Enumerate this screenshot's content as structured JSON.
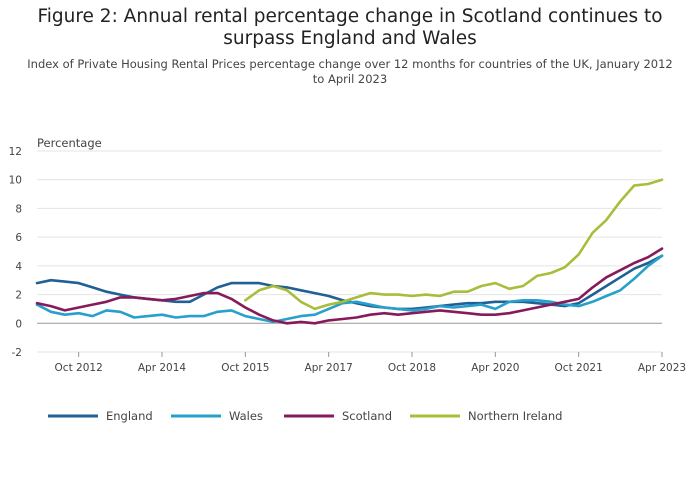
{
  "chart_data": {
    "type": "line",
    "title": "Figure 2: Annual rental percentage change in Scotland continues to surpass England and Wales",
    "subtitle": "Index of Private Housing Rental Prices percentage change over 12 months for countries of the UK, January 2012 to April 2023",
    "ylabel": "Percentage",
    "xlabel": "",
    "ylim": [
      -2,
      12
    ],
    "yticks": [
      -2,
      0,
      2,
      4,
      6,
      8,
      10,
      12
    ],
    "xlim": [
      "2012-01",
      "2023-04"
    ],
    "xticks": [
      {
        "date": "2012-10",
        "label": "Oct 2012"
      },
      {
        "date": "2014-04",
        "label": "Apr 2014"
      },
      {
        "date": "2015-10",
        "label": "Oct 2015"
      },
      {
        "date": "2017-04",
        "label": "Apr 2017"
      },
      {
        "date": "2018-10",
        "label": "Oct 2018"
      },
      {
        "date": "2020-04",
        "label": "Apr 2020"
      },
      {
        "date": "2021-10",
        "label": "Oct 2021"
      },
      {
        "date": "2023-04",
        "label": "Apr 2023"
      }
    ],
    "grid": true,
    "legend": "bottom",
    "series": [
      {
        "name": "England",
        "color": "#206095",
        "points": [
          [
            "2012-01",
            2.8
          ],
          [
            "2012-04",
            3.0
          ],
          [
            "2012-07",
            2.9
          ],
          [
            "2012-10",
            2.8
          ],
          [
            "2013-01",
            2.5
          ],
          [
            "2013-04",
            2.2
          ],
          [
            "2013-07",
            2.0
          ],
          [
            "2013-10",
            1.8
          ],
          [
            "2014-01",
            1.7
          ],
          [
            "2014-04",
            1.6
          ],
          [
            "2014-07",
            1.5
          ],
          [
            "2014-10",
            1.5
          ],
          [
            "2015-01",
            2.0
          ],
          [
            "2015-04",
            2.5
          ],
          [
            "2015-07",
            2.8
          ],
          [
            "2015-10",
            2.8
          ],
          [
            "2016-01",
            2.8
          ],
          [
            "2016-04",
            2.6
          ],
          [
            "2016-07",
            2.5
          ],
          [
            "2016-10",
            2.3
          ],
          [
            "2017-01",
            2.1
          ],
          [
            "2017-04",
            1.9
          ],
          [
            "2017-07",
            1.6
          ],
          [
            "2017-10",
            1.4
          ],
          [
            "2018-01",
            1.2
          ],
          [
            "2018-04",
            1.1
          ],
          [
            "2018-07",
            1.0
          ],
          [
            "2018-10",
            1.0
          ],
          [
            "2019-01",
            1.1
          ],
          [
            "2019-04",
            1.2
          ],
          [
            "2019-07",
            1.3
          ],
          [
            "2019-10",
            1.4
          ],
          [
            "2020-01",
            1.4
          ],
          [
            "2020-04",
            1.5
          ],
          [
            "2020-07",
            1.5
          ],
          [
            "2020-10",
            1.5
          ],
          [
            "2021-01",
            1.4
          ],
          [
            "2021-04",
            1.3
          ],
          [
            "2021-07",
            1.2
          ],
          [
            "2021-10",
            1.4
          ],
          [
            "2022-01",
            2.0
          ],
          [
            "2022-04",
            2.6
          ],
          [
            "2022-07",
            3.2
          ],
          [
            "2022-10",
            3.8
          ],
          [
            "2023-01",
            4.2
          ],
          [
            "2023-04",
            4.7
          ]
        ]
      },
      {
        "name": "Wales",
        "color": "#27a0cc",
        "points": [
          [
            "2012-01",
            1.3
          ],
          [
            "2012-04",
            0.8
          ],
          [
            "2012-07",
            0.6
          ],
          [
            "2012-10",
            0.7
          ],
          [
            "2013-01",
            0.5
          ],
          [
            "2013-04",
            0.9
          ],
          [
            "2013-07",
            0.8
          ],
          [
            "2013-10",
            0.4
          ],
          [
            "2014-01",
            0.5
          ],
          [
            "2014-04",
            0.6
          ],
          [
            "2014-07",
            0.4
          ],
          [
            "2014-10",
            0.5
          ],
          [
            "2015-01",
            0.5
          ],
          [
            "2015-04",
            0.8
          ],
          [
            "2015-07",
            0.9
          ],
          [
            "2015-10",
            0.5
          ],
          [
            "2016-01",
            0.3
          ],
          [
            "2016-04",
            0.1
          ],
          [
            "2016-07",
            0.3
          ],
          [
            "2016-10",
            0.5
          ],
          [
            "2017-01",
            0.6
          ],
          [
            "2017-04",
            1.0
          ],
          [
            "2017-07",
            1.4
          ],
          [
            "2017-10",
            1.5
          ],
          [
            "2018-01",
            1.3
          ],
          [
            "2018-04",
            1.1
          ],
          [
            "2018-07",
            1.0
          ],
          [
            "2018-10",
            0.9
          ],
          [
            "2019-01",
            1.0
          ],
          [
            "2019-04",
            1.2
          ],
          [
            "2019-07",
            1.1
          ],
          [
            "2019-10",
            1.2
          ],
          [
            "2020-01",
            1.3
          ],
          [
            "2020-04",
            1.0
          ],
          [
            "2020-07",
            1.5
          ],
          [
            "2020-10",
            1.6
          ],
          [
            "2021-01",
            1.6
          ],
          [
            "2021-04",
            1.5
          ],
          [
            "2021-07",
            1.3
          ],
          [
            "2021-10",
            1.2
          ],
          [
            "2022-01",
            1.5
          ],
          [
            "2022-04",
            1.9
          ],
          [
            "2022-07",
            2.3
          ],
          [
            "2022-10",
            3.1
          ],
          [
            "2023-01",
            4.0
          ],
          [
            "2023-04",
            4.7
          ]
        ]
      },
      {
        "name": "Scotland",
        "color": "#871a5b",
        "points": [
          [
            "2012-01",
            1.4
          ],
          [
            "2012-04",
            1.2
          ],
          [
            "2012-07",
            0.9
          ],
          [
            "2012-10",
            1.1
          ],
          [
            "2013-01",
            1.3
          ],
          [
            "2013-04",
            1.5
          ],
          [
            "2013-07",
            1.8
          ],
          [
            "2013-10",
            1.8
          ],
          [
            "2014-01",
            1.7
          ],
          [
            "2014-04",
            1.6
          ],
          [
            "2014-07",
            1.7
          ],
          [
            "2014-10",
            1.9
          ],
          [
            "2015-01",
            2.1
          ],
          [
            "2015-04",
            2.1
          ],
          [
            "2015-07",
            1.7
          ],
          [
            "2015-10",
            1.1
          ],
          [
            "2016-01",
            0.6
          ],
          [
            "2016-04",
            0.2
          ],
          [
            "2016-07",
            0.0
          ],
          [
            "2016-10",
            0.1
          ],
          [
            "2017-01",
            0.0
          ],
          [
            "2017-04",
            0.2
          ],
          [
            "2017-07",
            0.3
          ],
          [
            "2017-10",
            0.4
          ],
          [
            "2018-01",
            0.6
          ],
          [
            "2018-04",
            0.7
          ],
          [
            "2018-07",
            0.6
          ],
          [
            "2018-10",
            0.7
          ],
          [
            "2019-01",
            0.8
          ],
          [
            "2019-04",
            0.9
          ],
          [
            "2019-07",
            0.8
          ],
          [
            "2019-10",
            0.7
          ],
          [
            "2020-01",
            0.6
          ],
          [
            "2020-04",
            0.6
          ],
          [
            "2020-07",
            0.7
          ],
          [
            "2020-10",
            0.9
          ],
          [
            "2021-01",
            1.1
          ],
          [
            "2021-04",
            1.3
          ],
          [
            "2021-07",
            1.5
          ],
          [
            "2021-10",
            1.7
          ],
          [
            "2022-01",
            2.5
          ],
          [
            "2022-04",
            3.2
          ],
          [
            "2022-07",
            3.7
          ],
          [
            "2022-10",
            4.2
          ],
          [
            "2023-01",
            4.6
          ],
          [
            "2023-04",
            5.2
          ]
        ]
      },
      {
        "name": "Northern Ireland",
        "color": "#a8bd3a",
        "points": [
          [
            "2015-10",
            1.6
          ],
          [
            "2016-01",
            2.3
          ],
          [
            "2016-04",
            2.6
          ],
          [
            "2016-07",
            2.3
          ],
          [
            "2016-10",
            1.5
          ],
          [
            "2017-01",
            1.0
          ],
          [
            "2017-04",
            1.3
          ],
          [
            "2017-07",
            1.5
          ],
          [
            "2017-10",
            1.8
          ],
          [
            "2018-01",
            2.1
          ],
          [
            "2018-04",
            2.0
          ],
          [
            "2018-07",
            2.0
          ],
          [
            "2018-10",
            1.9
          ],
          [
            "2019-01",
            2.0
          ],
          [
            "2019-04",
            1.9
          ],
          [
            "2019-07",
            2.2
          ],
          [
            "2019-10",
            2.2
          ],
          [
            "2020-01",
            2.6
          ],
          [
            "2020-04",
            2.8
          ],
          [
            "2020-07",
            2.4
          ],
          [
            "2020-10",
            2.6
          ],
          [
            "2021-01",
            3.3
          ],
          [
            "2021-04",
            3.5
          ],
          [
            "2021-07",
            3.9
          ],
          [
            "2021-10",
            4.8
          ],
          [
            "2022-01",
            6.3
          ],
          [
            "2022-04",
            7.2
          ],
          [
            "2022-07",
            8.5
          ],
          [
            "2022-10",
            9.6
          ],
          [
            "2023-01",
            9.7
          ],
          [
            "2023-04",
            10.0
          ]
        ]
      }
    ]
  }
}
